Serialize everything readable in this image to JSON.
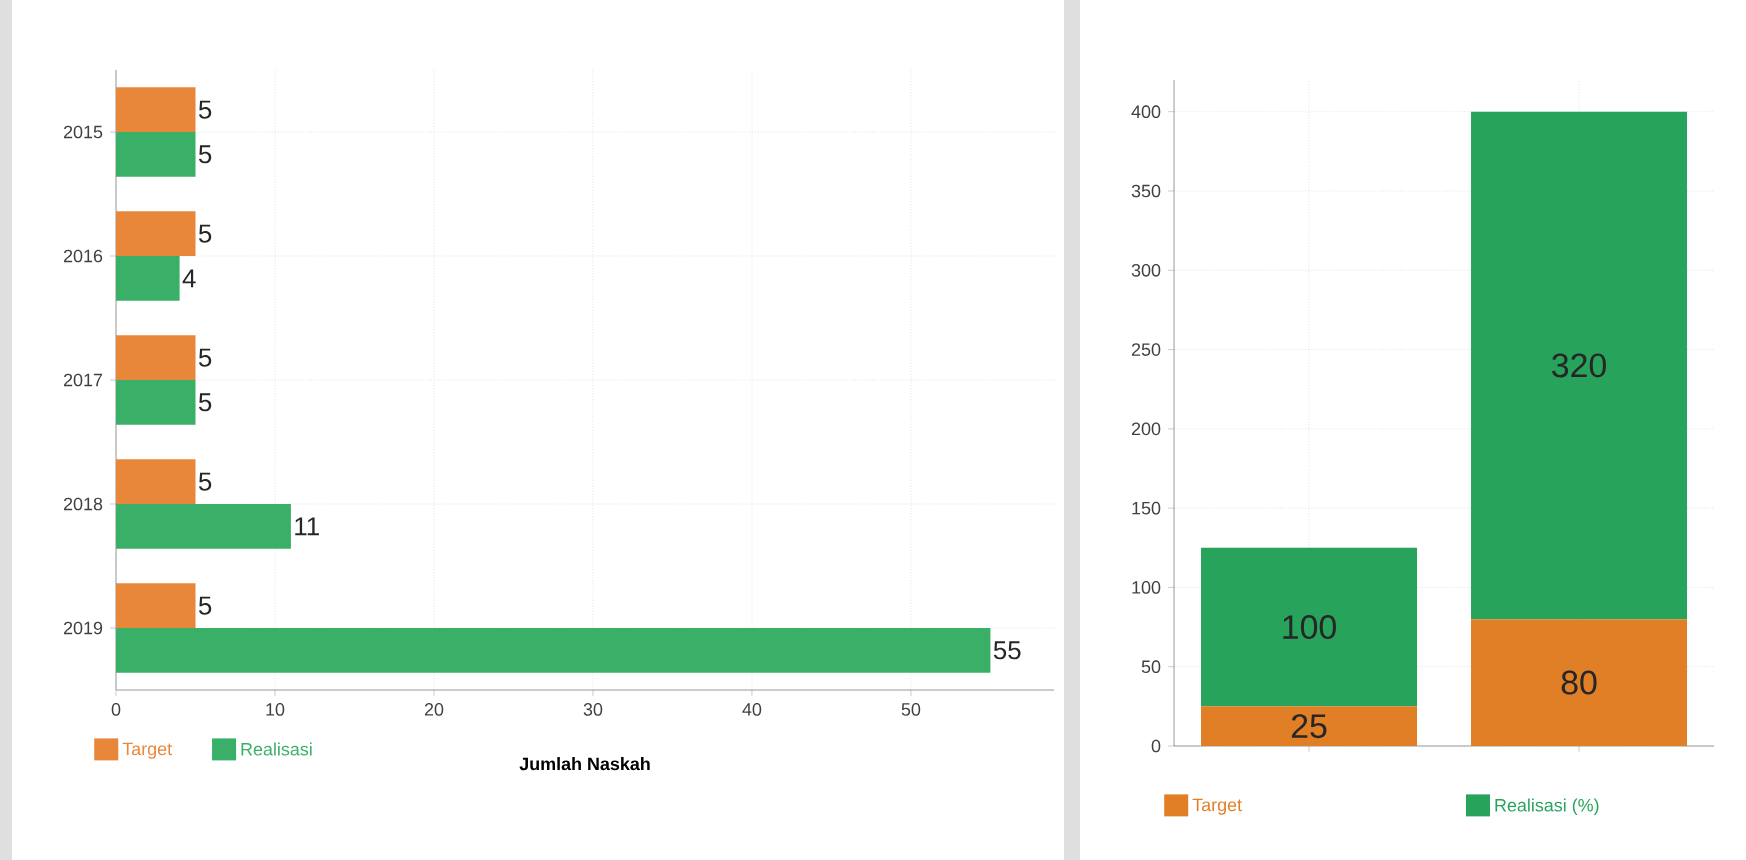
{
  "chart_data": [
    {
      "type": "bar",
      "orientation": "horizontal",
      "xlabel": "Jumlah Naskah",
      "categories": [
        "2015",
        "2016",
        "2017",
        "2018",
        "2019"
      ],
      "series": [
        {
          "name": "Target",
          "color": "#e8863a",
          "values": [
            5,
            5,
            5,
            5,
            5
          ]
        },
        {
          "name": "Realisasi",
          "color": "#3aaf68",
          "values": [
            5,
            4,
            5,
            11,
            55
          ]
        }
      ],
      "xlim": [
        0,
        59
      ],
      "xticks": [
        0,
        10,
        20,
        30,
        40,
        50
      ],
      "grid": true,
      "legend": "bottom",
      "data_labels": true
    },
    {
      "type": "bar",
      "stacked": true,
      "categories": [
        null,
        null
      ],
      "series": [
        {
          "name": "Target",
          "color": "#e07f26",
          "values": [
            25,
            80
          ]
        },
        {
          "name": "Realisasi (%)",
          "color": "#27a35c",
          "values": [
            100,
            320
          ]
        }
      ],
      "ylim": [
        0,
        420
      ],
      "yticks": [
        0,
        50,
        100,
        150,
        200,
        250,
        300,
        350,
        400
      ],
      "grid": true,
      "legend": "bottom",
      "data_labels": true
    }
  ]
}
